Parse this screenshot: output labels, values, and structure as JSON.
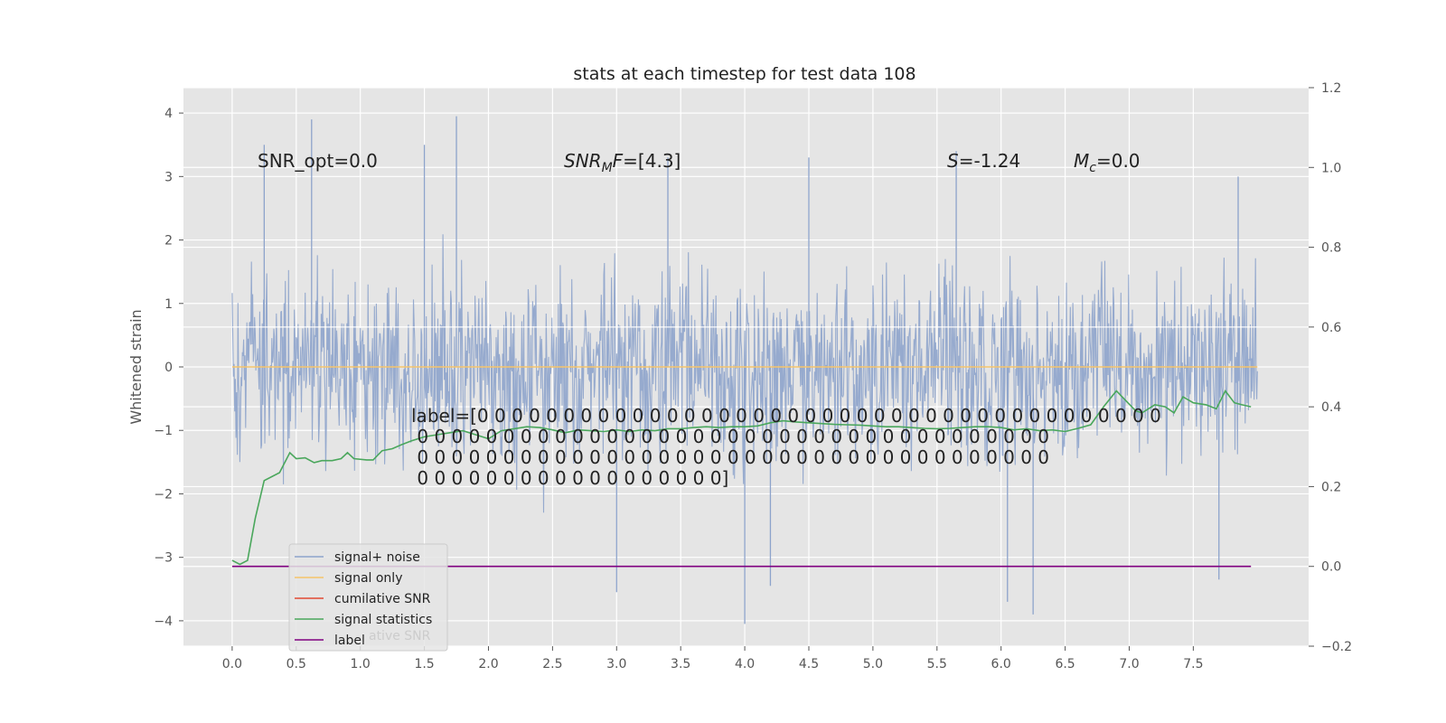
{
  "chart_data": {
    "type": "line",
    "title": "stats at each timestep for test data 108",
    "ylabel": "Whitened strain",
    "y2label": "",
    "xlim": [
      -0.38,
      8.4
    ],
    "ylim": [
      -4.4,
      4.4
    ],
    "y2lim": [
      -0.2,
      1.2
    ],
    "x_ticks": [
      "0.0",
      "0.5",
      "1.0",
      "1.5",
      "2.0",
      "2.5",
      "3.0",
      "3.5",
      "4.0",
      "4.5",
      "5.0",
      "5.5",
      "6.0",
      "6.5",
      "7.0",
      "7.5"
    ],
    "y_ticks": [
      "−4",
      "−3",
      "−2",
      "−1",
      "0",
      "1",
      "2",
      "3",
      "4"
    ],
    "y2_ticks": [
      "−0.2",
      "0.0",
      "0.2",
      "0.4",
      "0.6",
      "0.8",
      "1.0",
      "1.2"
    ],
    "grid": true,
    "annotations": {
      "snr_opt": "SNR_opt=0.0",
      "snr_mf_sym": "SNR",
      "snr_mf_sub": "M",
      "snr_mf_rest": "F=[4.3]",
      "s_sym": "S",
      "s_rest": "=-1.24",
      "mc_sym": "M",
      "mc_sub": "c",
      "mc_rest": "=0.0"
    },
    "label_text": [
      "label=[0 0 0 0 0 0 0 0 0 0 0 0 0 0 0 0 0 0 0 0 0 0 0 0 0 0 0 0 0 0 0 0 0 0 0 0 0 0 0 0",
      " 0 0 0 0 0 0 0 0 0 0 0 0 0 0 0 0 0 0 0 0 0 0 0 0 0 0 0 0 0 0 0 0 0 0 0 0 0",
      " 0 0 0 0 0 0 0 0 0 0 0 0 0 0 0 0 0 0 0 0 0 0 0 0 0 0 0 0 0 0 0 0 0 0 0 0 0",
      " 0 0 0 0 0 0 0 0 0 0 0 0 0 0 0 0 0 0]"
    ],
    "legend": {
      "position": "lower-left",
      "entries": [
        {
          "name": "signal+ noise",
          "color": "#8da3cb"
        },
        {
          "name": "signal only",
          "color": "#f5c46a"
        },
        {
          "name": "cumilative SNR",
          "color": "#e24a33"
        },
        {
          "name": "signal statistics",
          "color": "#4aa75c"
        },
        {
          "name": "label",
          "color": "#800080"
        }
      ],
      "ghost_text": "cumilative SNR"
    },
    "series": [
      {
        "name": "signal+ noise",
        "axis": "left",
        "color": "#8da3cb",
        "note": "dense noise trace, x from 0.0 to 8.0",
        "x_range": [
          0.0,
          8.0
        ],
        "envelope_max": 3.95,
        "envelope_min": -4.05,
        "spikes_up": [
          {
            "x": 0.25,
            "y": 3.5
          },
          {
            "x": 0.62,
            "y": 3.9
          },
          {
            "x": 1.5,
            "y": 3.5
          },
          {
            "x": 1.75,
            "y": 3.95
          },
          {
            "x": 3.4,
            "y": 3.3
          },
          {
            "x": 4.5,
            "y": 3.3
          },
          {
            "x": 5.65,
            "y": 3.4
          },
          {
            "x": 7.85,
            "y": 3.0
          }
        ],
        "spikes_down": [
          {
            "x": 3.0,
            "y": -3.55
          },
          {
            "x": 4.0,
            "y": -4.05
          },
          {
            "x": 4.2,
            "y": -3.45
          },
          {
            "x": 6.05,
            "y": -3.7
          },
          {
            "x": 6.25,
            "y": -3.9
          },
          {
            "x": 7.7,
            "y": -3.35
          }
        ]
      },
      {
        "name": "signal only",
        "axis": "left",
        "color": "#f5c46a",
        "x": [
          0.0,
          8.0
        ],
        "values": [
          0.0,
          0.0
        ]
      },
      {
        "name": "signal statistics",
        "axis": "right",
        "color": "#4aa75c",
        "x": [
          0.0,
          0.06,
          0.12,
          0.18,
          0.25,
          0.37,
          0.45,
          0.5,
          0.57,
          0.64,
          0.7,
          0.78,
          0.85,
          0.9,
          0.95,
          1.05,
          1.1,
          1.17,
          1.25,
          1.32,
          1.4,
          1.5,
          1.6,
          1.7,
          1.8,
          1.9,
          2.0,
          2.1,
          2.2,
          2.3,
          2.4,
          2.5,
          2.6,
          2.7,
          2.8,
          2.9,
          3.0,
          3.1,
          3.2,
          3.3,
          3.4,
          3.5,
          3.6,
          3.7,
          3.8,
          3.9,
          4.0,
          4.1,
          4.2,
          4.3,
          4.4,
          4.5,
          4.6,
          4.7,
          4.8,
          4.9,
          5.0,
          5.1,
          5.2,
          5.3,
          5.4,
          5.5,
          5.6,
          5.7,
          5.8,
          5.9,
          6.0,
          6.1,
          6.2,
          6.3,
          6.4,
          6.5,
          6.6,
          6.7,
          6.8,
          6.9,
          6.96,
          7.05,
          7.1,
          7.2,
          7.28,
          7.35,
          7.42,
          7.5,
          7.6,
          7.68,
          7.75,
          7.82,
          7.88,
          7.95
        ],
        "values": [
          0.015,
          0.005,
          0.015,
          0.12,
          0.215,
          0.235,
          0.285,
          0.27,
          0.272,
          0.26,
          0.265,
          0.265,
          0.27,
          0.285,
          0.27,
          0.267,
          0.267,
          0.29,
          0.295,
          0.305,
          0.315,
          0.325,
          0.33,
          0.335,
          0.34,
          0.33,
          0.32,
          0.34,
          0.345,
          0.35,
          0.348,
          0.342,
          0.335,
          0.342,
          0.34,
          0.338,
          0.342,
          0.338,
          0.342,
          0.34,
          0.345,
          0.345,
          0.348,
          0.35,
          0.348,
          0.35,
          0.35,
          0.352,
          0.36,
          0.365,
          0.362,
          0.36,
          0.358,
          0.356,
          0.355,
          0.354,
          0.352,
          0.35,
          0.35,
          0.348,
          0.346,
          0.345,
          0.346,
          0.348,
          0.35,
          0.35,
          0.348,
          0.342,
          0.345,
          0.34,
          0.342,
          0.338,
          0.346,
          0.355,
          0.4,
          0.44,
          0.42,
          0.39,
          0.385,
          0.405,
          0.4,
          0.385,
          0.425,
          0.41,
          0.405,
          0.395,
          0.44,
          0.41,
          0.405,
          0.4
        ]
      },
      {
        "name": "label",
        "axis": "right",
        "color": "#800080",
        "x": [
          0.0,
          7.95
        ],
        "values": [
          0.0,
          0.0
        ]
      }
    ]
  }
}
